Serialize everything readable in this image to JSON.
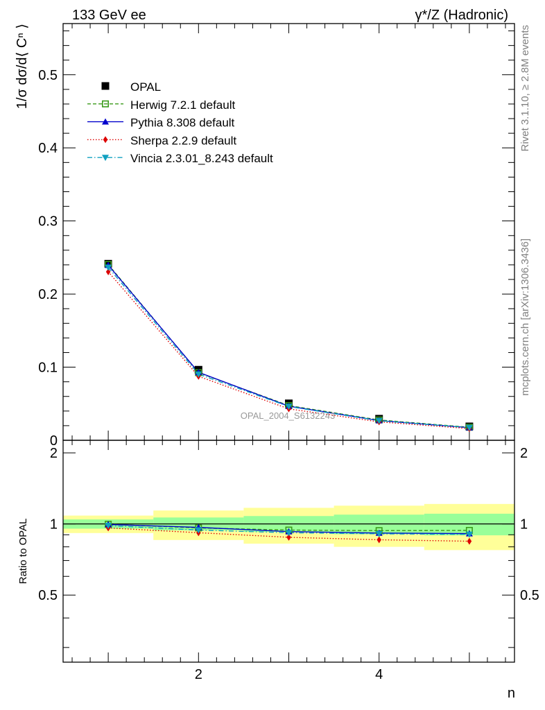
{
  "header": {
    "left_title": "133 GeV ee",
    "right_title": "γ*/Z (Hadronic)"
  },
  "side_labels": {
    "rivet": "Rivet 3.1.10, ≥ 2.8M events",
    "mcplots": "mcplots.cern.ch [arXiv:1306.3436]"
  },
  "watermark": "OPAL_2004_S6132243",
  "chart_data": [
    {
      "type": "line",
      "ylabel": "1/σ dσ/d⟨ Cⁿ ⟩",
      "xlabel": "",
      "xlim": [
        0.5,
        5.5
      ],
      "ylim": [
        0,
        0.57
      ],
      "yticks": [
        "0",
        "0.1",
        "0.2",
        "0.3",
        "0.4",
        "0.5"
      ],
      "legend_position": "top-left",
      "x": [
        1,
        2,
        3,
        4,
        5
      ],
      "data": {
        "name": "OPAL",
        "values": [
          0.2415,
          0.0965,
          0.0505,
          0.0295,
          0.019
        ]
      },
      "series": [
        {
          "name": "Herwig 7.2.1 default",
          "color": "#3a9a1a",
          "dash": "5,3",
          "marker": "open-square",
          "values": [
            0.2405,
            0.0925,
            0.0475,
            0.0278,
            0.0178
          ]
        },
        {
          "name": "Pythia 8.308 default",
          "color": "#0000cc",
          "dash": "",
          "marker": "triangle-up",
          "values": [
            0.2395,
            0.093,
            0.0467,
            0.027,
            0.0172
          ]
        },
        {
          "name": "Sherpa 2.2.9 default",
          "color": "#dd0000",
          "dash": "1.5,2.5",
          "marker": "diamond",
          "values": [
            0.2305,
            0.0875,
            0.043,
            0.0252,
            0.016
          ]
        },
        {
          "name": "Vincia 2.3.01_8.243 default",
          "color": "#10a0c0",
          "dash": "7,3,1.5,3",
          "marker": "triangle-down",
          "values": [
            0.2365,
            0.0905,
            0.0462,
            0.0268,
            0.0173
          ]
        }
      ]
    },
    {
      "type": "line",
      "ylabel": "Ratio to OPAL",
      "xlabel": "n",
      "xlim": [
        0.5,
        5.5
      ],
      "ylim": [
        0.26,
        2.26
      ],
      "yticks": [
        "0.5",
        "1",
        "2"
      ],
      "xticks": [
        "2",
        "4"
      ],
      "uncertainty_bands": {
        "inner": [
          [
            0.955,
            1.045
          ],
          [
            0.94,
            1.065
          ],
          [
            0.925,
            1.08
          ],
          [
            0.905,
            1.095
          ],
          [
            0.895,
            1.105
          ]
        ],
        "outer": [
          [
            0.915,
            1.085
          ],
          [
            0.855,
            1.14
          ],
          [
            0.825,
            1.17
          ],
          [
            0.8,
            1.195
          ],
          [
            0.775,
            1.215
          ]
        ]
      },
      "series": [
        {
          "name": "Herwig 7.2.1 default",
          "values": [
            0.997,
            0.962,
            0.942,
            0.937,
            0.939
          ]
        },
        {
          "name": "Pythia 8.308 default",
          "values": [
            0.995,
            0.967,
            0.928,
            0.915,
            0.91
          ]
        },
        {
          "name": "Sherpa 2.2.9 default",
          "values": [
            0.962,
            0.918,
            0.878,
            0.857,
            0.845
          ]
        },
        {
          "name": "Vincia 2.3.01_8.243 default",
          "values": [
            0.984,
            0.942,
            0.918,
            0.908,
            0.903
          ]
        }
      ]
    }
  ]
}
